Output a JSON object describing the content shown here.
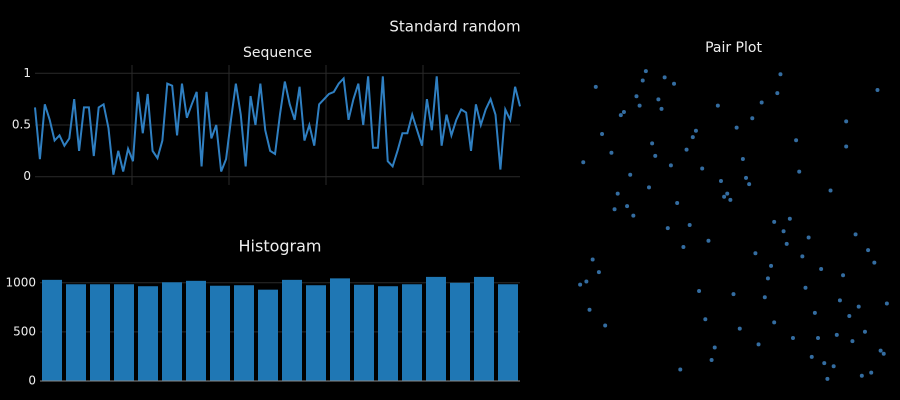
{
  "title": "Standard random",
  "chart_data": [
    {
      "type": "line",
      "title": "Sequence",
      "color": "#2f7fc1",
      "values": [
        0.67,
        0.17,
        0.7,
        0.55,
        0.35,
        0.4,
        0.3,
        0.37,
        0.75,
        0.25,
        0.67,
        0.67,
        0.2,
        0.67,
        0.7,
        0.47,
        0.02,
        0.25,
        0.05,
        0.27,
        0.15,
        0.82,
        0.42,
        0.8,
        0.25,
        0.18,
        0.35,
        0.9,
        0.88,
        0.4,
        0.9,
        0.57,
        0.7,
        0.82,
        0.1,
        0.82,
        0.37,
        0.5,
        0.05,
        0.17,
        0.55,
        0.9,
        0.6,
        0.1,
        0.78,
        0.5,
        0.9,
        0.45,
        0.25,
        0.22,
        0.6,
        0.92,
        0.7,
        0.55,
        0.87,
        0.35,
        0.5,
        0.3,
        0.7,
        0.75,
        0.8,
        0.82,
        0.9,
        0.95,
        0.55,
        0.75,
        0.9,
        0.5,
        0.97,
        0.28,
        0.28,
        0.97,
        0.15,
        0.1,
        0.25,
        0.42,
        0.42,
        0.6,
        0.45,
        0.3,
        0.75,
        0.45,
        0.97,
        0.3,
        0.6,
        0.4,
        0.55,
        0.65,
        0.62,
        0.25,
        0.7,
        0.5,
        0.65,
        0.75,
        0.6,
        0.07,
        0.65,
        0.55,
        0.87,
        0.68
      ],
      "ylim": [
        -0.08,
        1.08
      ],
      "yticks": [
        0,
        0.5,
        1
      ],
      "grid": true
    },
    {
      "type": "histogram",
      "title": "Histogram",
      "color": "#1f77b4",
      "bins": [
        0,
        0.05,
        0.1,
        0.15,
        0.2,
        0.25,
        0.3,
        0.35,
        0.4,
        0.45,
        0.5,
        0.55,
        0.6,
        0.65,
        0.7,
        0.75,
        0.8,
        0.85,
        0.9,
        0.95,
        1
      ],
      "values": [
        1030,
        985,
        985,
        985,
        965,
        1005,
        1020,
        970,
        975,
        930,
        1030,
        975,
        1045,
        980,
        965,
        985,
        1060,
        1000,
        1060,
        985
      ],
      "xlim": [
        0,
        1
      ],
      "ylim": [
        0,
        1120
      ],
      "yticks": [
        0,
        500,
        1000
      ],
      "grid": true
    },
    {
      "type": "scatter",
      "title": "Pair Plot",
      "color": "#3d80bd",
      "x": [
        0.12,
        0.87,
        0.45,
        0.33,
        0.71,
        0.05,
        0.96,
        0.58,
        0.24,
        0.66,
        0.39,
        0.81,
        0.14,
        0.52,
        0.93,
        0.28,
        0.75,
        0.02,
        0.61,
        0.47,
        0.19,
        0.84,
        0.36,
        0.69,
        0.08,
        0.55,
        0.91,
        0.42,
        0.27,
        0.78,
        0.63,
        0.11,
        0.49,
        0.98,
        0.31,
        0.73,
        0.17,
        0.57,
        0.86,
        0.04,
        0.44,
        0.68,
        0.22,
        0.95,
        0.35,
        0.79,
        0.13,
        0.6,
        0.89,
        0.26,
        0.51,
        0.07,
        0.83,
        0.4,
        0.67,
        0.21,
        0.94,
        0.32,
        0.76,
        0.15,
        0.53,
        0.88,
        0.29,
        0.64,
        0.01,
        0.46,
        0.82,
        0.37,
        0.72,
        0.09,
        0.56,
        0.99,
        0.23,
        0.65,
        0.43,
        0.85,
        0.18,
        0.59,
        0.92,
        0.3,
        0.74,
        0.06,
        0.5,
        0.97,
        0.25,
        0.62,
        0.38,
        0.8,
        0.16,
        0.54,
        0.9,
        0.34,
        0.7,
        0.03,
        0.48,
        0.77,
        0.2,
        0.63,
        0.41,
        0.86
      ],
      "y": [
        0.55,
        0.21,
        0.88,
        0.04,
        0.67,
        0.39,
        0.93,
        0.12,
        0.76,
        0.48,
        0.29,
        0.61,
        0.85,
        0.17,
        0.42,
        0.97,
        0.08,
        0.7,
        0.33,
        0.59,
        0.91,
        0.26,
        0.5,
        0.14,
        0.79,
        0.63,
        0.02,
        0.45,
        0.87,
        0.36,
        0.19,
        0.73,
        0.58,
        0.09,
        0.95,
        0.3,
        0.66,
        0.41,
        0.83,
        0.23,
        0.11,
        0.52,
        0.99,
        0.38,
        0.74,
        0.06,
        0.6,
        0.27,
        0.47,
        0.9,
        0.81,
        0.35,
        0.15,
        0.68,
        0.44,
        0.96,
        0.03,
        0.57,
        0.22,
        0.86,
        0.71,
        0.13,
        0.49,
        0.92,
        0.31,
        0.64,
        0.05,
        0.78,
        0.4,
        0.18,
        0.84,
        0.25,
        0.62,
        0.98,
        0.07,
        0.34,
        0.53,
        0.89,
        0.16,
        0.69,
        0.46,
        0.94,
        0.28,
        0.1,
        0.72,
        0.37,
        0.8,
        0.01,
        0.56,
        0.65,
        0.24,
        0.43,
        0.77,
        0.32,
        0.6,
        0.14,
        0.88,
        0.51,
        0.2,
        0.75
      ],
      "xlim": [
        0,
        1
      ],
      "ylim": [
        0,
        1
      ]
    }
  ]
}
